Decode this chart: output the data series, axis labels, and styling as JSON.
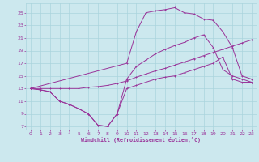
{
  "xlabel": "Windchill (Refroidissement éolien,°C)",
  "bg_color": "#cce8ee",
  "grid_color": "#aad4dd",
  "line_color": "#993399",
  "xlim": [
    -0.5,
    23.5
  ],
  "ylim": [
    6.5,
    26.5
  ],
  "xticks": [
    0,
    1,
    2,
    3,
    4,
    5,
    6,
    7,
    8,
    9,
    10,
    11,
    12,
    13,
    14,
    15,
    16,
    17,
    18,
    19,
    20,
    21,
    22,
    23
  ],
  "yticks": [
    7,
    9,
    11,
    13,
    15,
    17,
    19,
    21,
    23,
    25
  ],
  "line1_x": [
    0,
    1,
    2,
    3,
    4,
    5,
    6,
    7,
    8,
    9,
    10,
    11,
    12,
    13,
    14,
    15,
    16,
    17,
    18,
    19,
    20,
    21,
    22,
    23
  ],
  "line1_y": [
    13,
    12.8,
    12.5,
    11.0,
    10.5,
    9.8,
    9.0,
    7.2,
    7.0,
    9.0,
    13,
    13.5,
    14,
    14.5,
    14.8,
    15,
    15.5,
    16,
    16.5,
    17,
    18,
    14.5,
    14.0,
    14.0
  ],
  "line2_x": [
    0,
    1,
    2,
    3,
    4,
    5,
    6,
    7,
    8,
    9,
    10,
    11,
    12,
    13,
    14,
    15,
    16,
    17,
    18,
    19,
    20,
    21,
    22,
    23
  ],
  "line2_y": [
    13,
    13,
    13,
    13,
    13,
    13,
    13.2,
    13.3,
    13.5,
    13.8,
    14.2,
    14.8,
    15.3,
    15.8,
    16.2,
    16.7,
    17.2,
    17.7,
    18.2,
    18.7,
    19.2,
    19.7,
    20.2,
    20.7
  ],
  "line3_x": [
    0,
    10,
    11,
    12,
    13,
    14,
    15,
    16,
    17,
    18,
    19,
    20,
    21,
    22,
    23
  ],
  "line3_y": [
    13,
    17,
    22,
    25,
    25.3,
    25.5,
    25.8,
    25.0,
    24.8,
    24.0,
    23.8,
    22.0,
    19.5,
    15,
    14.5
  ],
  "line4_x": [
    0,
    1,
    2,
    3,
    4,
    5,
    6,
    7,
    8,
    9,
    10,
    11,
    12,
    13,
    14,
    15,
    16,
    17,
    18,
    19,
    20,
    21,
    22,
    23
  ],
  "line4_y": [
    13,
    12.8,
    12.5,
    11.0,
    10.5,
    9.8,
    9.0,
    7.2,
    7.0,
    9.0,
    14.5,
    16.5,
    17.5,
    18.5,
    19.2,
    19.8,
    20.3,
    21.0,
    21.5,
    19.5,
    16.0,
    15.0,
    14.5,
    14.0
  ]
}
